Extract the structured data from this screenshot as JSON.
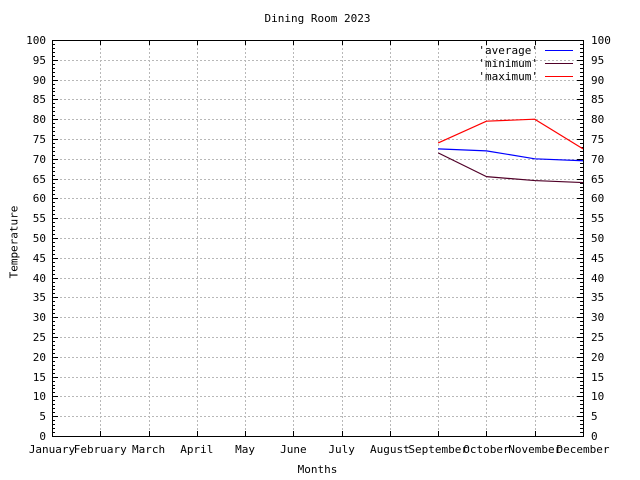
{
  "chart_data": {
    "type": "line",
    "title": "Dining Room 2023",
    "xlabel": "Months",
    "ylabel": "Temperature",
    "ylim": [
      0,
      100
    ],
    "ytick_step": 5,
    "y_minor_step": 1,
    "y_labels_both_sides": true,
    "grid": true,
    "grid_style": "dashed-gray",
    "legend_position": "top-right-inside",
    "categories": [
      "January",
      "February",
      "March",
      "April",
      "May",
      "June",
      "July",
      "August",
      "September",
      "October",
      "November",
      "December"
    ],
    "series": [
      {
        "name": "average",
        "label": "'average'",
        "color": "#0000ff",
        "x": [
          "September",
          "October",
          "November",
          "December"
        ],
        "values": [
          72.5,
          72,
          70,
          69.5
        ]
      },
      {
        "name": "minimum",
        "label": "'minimum'",
        "color": "#500028",
        "x": [
          "September",
          "October",
          "November",
          "December"
        ],
        "values": [
          71.5,
          65.5,
          64.5,
          64
        ]
      },
      {
        "name": "maximum",
        "label": "'maximum'",
        "color": "#ff0000",
        "x": [
          "September",
          "October",
          "November",
          "December"
        ],
        "values": [
          74,
          79.5,
          80,
          72.5
        ]
      }
    ]
  }
}
